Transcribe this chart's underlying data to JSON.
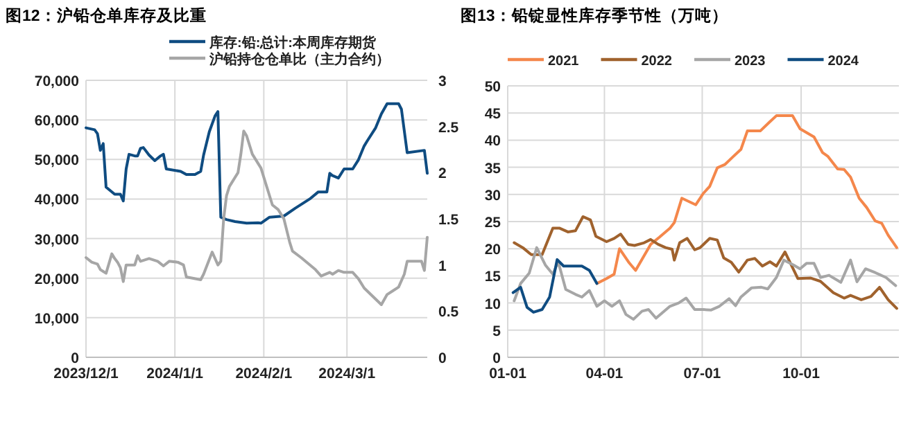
{
  "chart_data": [
    {
      "type": "line",
      "title": "图12：沪铅仓单库存及比重",
      "legend": "top",
      "grid": true,
      "line_style": "solid",
      "xlim": [
        "2023-12-01",
        "2024-03-29"
      ],
      "xticks": [
        {
          "value": "2023-12-01",
          "label": "2023/12/1"
        },
        {
          "value": "2024-01-01",
          "label": "2024/1/1"
        },
        {
          "value": "2024-02-01",
          "label": "2024/2/1"
        },
        {
          "value": "2024-03-01",
          "label": "2024/3/1"
        }
      ],
      "ylim": [
        0,
        70000
      ],
      "yticks": [
        0,
        {
          "value": 10000,
          "label": "10,000"
        },
        {
          "value": 20000,
          "label": "20,000"
        },
        {
          "value": 30000,
          "label": "30,000"
        },
        {
          "value": 40000,
          "label": "40,000"
        },
        {
          "value": 50000,
          "label": "50,000"
        },
        {
          "value": 60000,
          "label": "60,000"
        },
        {
          "value": 70000,
          "label": "70,000"
        }
      ],
      "y2lim": [
        0,
        3
      ],
      "y2ticks": [
        0,
        0.5,
        1,
        1.5,
        2,
        2.5,
        3
      ],
      "series": [
        {
          "name": "库存:铅:总计:本周库存期货",
          "color": "#0f4c81",
          "x": [
            "2023-12-01",
            "2023-12-04",
            "2023-12-05",
            "2023-12-06",
            "2023-12-07",
            "2023-12-08",
            "2023-12-11",
            "2023-12-13",
            "2023-12-14",
            "2023-12-15",
            "2023-12-16",
            "2023-12-18",
            "2023-12-19",
            "2023-12-20",
            "2023-12-21",
            "2023-12-23",
            "2023-12-25",
            "2023-12-27",
            "2023-12-28",
            "2023-12-29",
            "2024-01-03",
            "2024-01-05",
            "2024-01-08",
            "2024-01-10",
            "2024-01-11",
            "2024-01-13",
            "2024-01-15",
            "2024-01-16",
            "2024-01-17",
            "2024-01-19",
            "2024-01-22",
            "2024-01-26",
            "2024-01-30",
            "2024-01-31",
            "2024-02-03",
            "2024-02-08",
            "2024-02-12",
            "2024-02-17",
            "2024-02-20",
            "2024-02-23",
            "2024-02-24",
            "2024-02-25",
            "2024-02-27",
            "2024-02-29",
            "2024-03-03",
            "2024-03-05",
            "2024-03-07",
            "2024-03-08",
            "2024-03-11",
            "2024-03-13",
            "2024-03-15",
            "2024-03-19",
            "2024-03-20",
            "2024-03-22",
            "2024-03-28",
            "2024-03-29"
          ],
          "values": [
            58000,
            57500,
            56500,
            52300,
            54000,
            43000,
            41200,
            41200,
            39500,
            47600,
            51300,
            50900,
            50900,
            52800,
            53000,
            51100,
            49700,
            50900,
            51300,
            47600,
            47000,
            46200,
            46200,
            47000,
            51100,
            57000,
            61000,
            62100,
            35400,
            34800,
            34300,
            33900,
            34000,
            33900,
            35400,
            35700,
            37700,
            40000,
            41800,
            41800,
            46500,
            45900,
            45300,
            47600,
            47600,
            49900,
            53400,
            54600,
            58000,
            61500,
            64100,
            64100,
            62700,
            51700,
            52300,
            46500
          ]
        },
        {
          "name": "沪铅持仓仓单比（主力合约）",
          "color": "#a6a6a6",
          "axis": "y2",
          "x": [
            "2023-12-01",
            "2023-12-03",
            "2023-12-05",
            "2023-12-06",
            "2023-12-07",
            "2023-12-08",
            "2023-12-10",
            "2023-12-11",
            "2023-12-12",
            "2023-12-13",
            "2023-12-14",
            "2023-12-15",
            "2023-12-18",
            "2023-12-19",
            "2023-12-20",
            "2023-12-23",
            "2023-12-26",
            "2023-12-28",
            "2023-12-30",
            "2024-01-02",
            "2024-01-04",
            "2024-01-05",
            "2024-01-10",
            "2024-01-11",
            "2024-01-14",
            "2024-01-16",
            "2024-01-17",
            "2024-01-18",
            "2024-01-19",
            "2024-01-20",
            "2024-01-23",
            "2024-01-24",
            "2024-01-25",
            "2024-01-26",
            "2024-01-28",
            "2024-01-31",
            "2024-02-02",
            "2024-02-04",
            "2024-02-06",
            "2024-02-08",
            "2024-02-10",
            "2024-02-11",
            "2024-02-14",
            "2024-02-19",
            "2024-02-21",
            "2024-02-24",
            "2024-02-25",
            "2024-02-27",
            "2024-02-29",
            "2024-03-03",
            "2024-03-05",
            "2024-03-07",
            "2024-03-10",
            "2024-03-12",
            "2024-03-13",
            "2024-03-15",
            "2024-03-17",
            "2024-03-19",
            "2024-03-21",
            "2024-03-22",
            "2024-03-25",
            "2024-03-27",
            "2024-03-28",
            "2024-03-29"
          ],
          "values": [
            1.08,
            1.03,
            1.01,
            0.95,
            0.93,
            0.91,
            1.12,
            1.07,
            1.03,
            0.97,
            0.82,
            1.0,
            1.0,
            1.1,
            1.04,
            1.07,
            1.04,
            0.99,
            1.04,
            1.03,
            1.0,
            0.87,
            0.84,
            0.9,
            1.14,
            1.0,
            1.04,
            1.5,
            1.75,
            1.85,
            2.0,
            2.2,
            2.45,
            2.4,
            2.2,
            2.05,
            1.85,
            1.65,
            1.6,
            1.5,
            1.25,
            1.15,
            1.08,
            0.95,
            0.88,
            0.92,
            0.9,
            0.94,
            0.92,
            0.92,
            0.85,
            0.75,
            0.66,
            0.6,
            0.57,
            0.68,
            0.72,
            0.76,
            0.9,
            1.04,
            1.04,
            1.04,
            0.94,
            1.3
          ]
        }
      ]
    },
    {
      "type": "line",
      "title": "图13：铅锭显性库存季节性（万吨）",
      "legend": "top",
      "grid": true,
      "line_style": "solid",
      "xlim": [
        "--01-01",
        "--12-31"
      ],
      "xticks": [
        {
          "value": "--01-01",
          "label": "01-01"
        },
        {
          "value": "--04-01",
          "label": "04-01"
        },
        {
          "value": "--07-01",
          "label": "07-01"
        },
        {
          "value": "--10-01",
          "label": "10-01"
        }
      ],
      "ylim": [
        0,
        50
      ],
      "yticks": [
        0,
        5,
        10,
        15,
        20,
        25,
        30,
        35,
        40,
        45,
        50
      ],
      "series": [
        {
          "name": "2021",
          "color": "#f4874b",
          "x": [
            "--03-25",
            "--04-03",
            "--04-10",
            "--04-15",
            "--04-24",
            "--04-30",
            "--05-14",
            "--05-22",
            "--06-01",
            "--06-05",
            "--06-12",
            "--06-25",
            "--07-02",
            "--07-08",
            "--07-15",
            "--07-22",
            "--07-30",
            "--08-06",
            "--08-12",
            "--08-24",
            "--09-02",
            "--09-08",
            "--09-23",
            "--09-30",
            "--10-13",
            "--10-21",
            "--10-26",
            "--11-04",
            "--11-10",
            "--11-16",
            "--11-24",
            "--12-01",
            "--12-09",
            "--12-15",
            "--12-21",
            "--12-29"
          ],
          "values": [
            13.6,
            14.5,
            15.3,
            20.0,
            17.4,
            16.0,
            20.8,
            22.1,
            23.8,
            24.8,
            29.3,
            28.1,
            30.2,
            31.5,
            34.9,
            35.5,
            37.0,
            38.3,
            41.7,
            41.7,
            43.4,
            44.5,
            44.5,
            42.1,
            40.6,
            37.7,
            37.0,
            34.7,
            34.6,
            33.2,
            29.3,
            27.6,
            25.1,
            24.7,
            22.5,
            20.2
          ]
        },
        {
          "name": "2022",
          "color": "#a0622d",
          "x": [
            "--01-07",
            "--01-15",
            "--01-23",
            "--02-02",
            "--02-12",
            "--02-18",
            "--02-26",
            "--03-05",
            "--03-12",
            "--03-19",
            "--03-24",
            "--04-03",
            "--04-10",
            "--04-16",
            "--04-23",
            "--04-29",
            "--05-08",
            "--05-14",
            "--05-21",
            "--05-28",
            "--06-03",
            "--06-05",
            "--06-10",
            "--06-17",
            "--06-24",
            "--06-29",
            "--07-08",
            "--07-15",
            "--07-21",
            "--07-28",
            "--08-04",
            "--08-12",
            "--08-19",
            "--08-26",
            "--09-02",
            "--09-08",
            "--09-16",
            "--09-28",
            "--10-10",
            "--10-19",
            "--10-31",
            "--11-10",
            "--11-16",
            "--11-26",
            "--12-05",
            "--12-13",
            "--12-21",
            "--12-29"
          ],
          "values": [
            21.1,
            20.2,
            18.9,
            18.9,
            23.8,
            23.8,
            23.1,
            23.3,
            25.9,
            25.3,
            22.3,
            21.3,
            21.9,
            22.7,
            20.8,
            20.6,
            21.1,
            21.7,
            20.8,
            20.2,
            19.9,
            17.9,
            21.1,
            21.9,
            19.8,
            20.2,
            21.9,
            21.6,
            18.3,
            17.5,
            15.7,
            17.9,
            18.2,
            16.8,
            17.6,
            16.8,
            19.4,
            14.5,
            14.6,
            14.0,
            11.9,
            10.9,
            11.4,
            10.6,
            11.2,
            12.9,
            10.6,
            9.0
          ]
        },
        {
          "name": "2023",
          "color": "#a6a6a6",
          "x": [
            "--01-07",
            "--01-13",
            "--01-21",
            "--01-28",
            "--02-05",
            "--02-12",
            "--02-17",
            "--02-24",
            "--03-05",
            "--03-11",
            "--03-18",
            "--03-25",
            "--04-01",
            "--04-08",
            "--04-15",
            "--04-21",
            "--04-28",
            "--05-06",
            "--05-12",
            "--05-19",
            "--06-01",
            "--06-09",
            "--06-16",
            "--06-24",
            "--07-02",
            "--07-09",
            "--07-17",
            "--07-26",
            "--08-01",
            "--08-06",
            "--08-16",
            "--08-25",
            "--08-31",
            "--09-08",
            "--09-15",
            "--09-24",
            "--09-30",
            "--10-06",
            "--10-13",
            "--10-19",
            "--10-27",
            "--11-07",
            "--11-16",
            "--11-22",
            "--11-30",
            "--12-09",
            "--12-19",
            "--12-28"
          ],
          "values": [
            10.4,
            13.6,
            15.5,
            20.2,
            17.0,
            15.3,
            17.6,
            12.5,
            11.6,
            11.1,
            12.3,
            9.4,
            10.4,
            9.4,
            10.4,
            7.9,
            7.0,
            8.5,
            8.8,
            7.2,
            9.4,
            10.0,
            10.9,
            8.8,
            8.8,
            8.7,
            9.4,
            10.8,
            9.5,
            11.1,
            12.8,
            12.9,
            12.6,
            14.7,
            17.9,
            17.0,
            16.3,
            17.3,
            17.3,
            14.7,
            15.1,
            13.8,
            17.9,
            13.9,
            16.3,
            15.6,
            14.7,
            13.2
          ]
        },
        {
          "name": "2024",
          "color": "#0f4c81",
          "x": [
            "--01-06",
            "--01-13",
            "--01-19",
            "--01-25",
            "--02-02",
            "--02-09",
            "--02-16",
            "--02-22",
            "--03-11",
            "--03-18",
            "--03-25"
          ],
          "values": [
            11.9,
            12.9,
            9.2,
            8.3,
            8.8,
            11.1,
            18.0,
            16.8,
            16.8,
            16.0,
            13.6
          ]
        }
      ]
    }
  ]
}
